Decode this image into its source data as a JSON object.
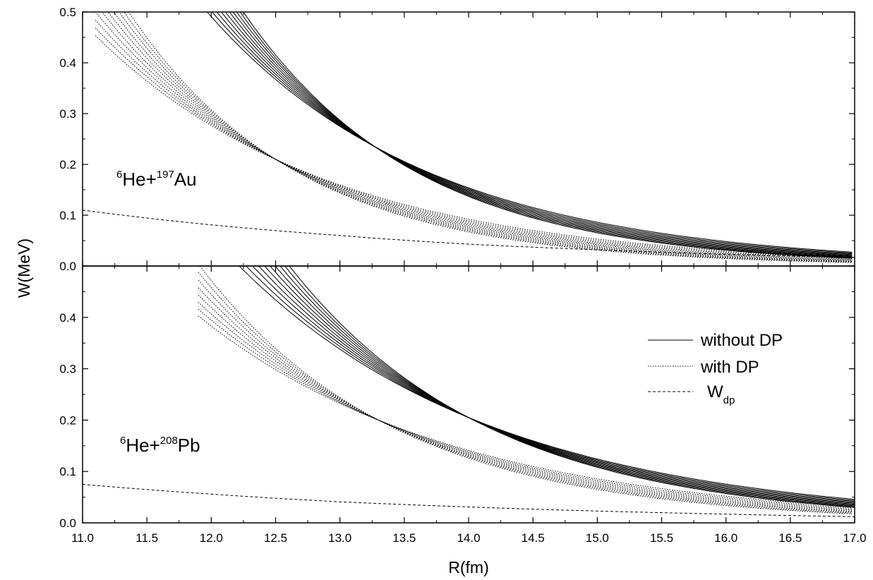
{
  "chart_data": {
    "type": "line",
    "xlabel": "R(fm)",
    "ylabel": "W(MeV)",
    "xlim": [
      11.0,
      17.0
    ],
    "ylim": [
      0.0,
      0.5
    ],
    "x_ticks": [
      "11.0",
      "11.5",
      "12.0",
      "12.5",
      "13.0",
      "13.5",
      "14.0",
      "14.5",
      "15.0",
      "15.5",
      "16.0",
      "16.5",
      "17.0"
    ],
    "y_ticks_top": [
      "0.0",
      "0.1",
      "0.2",
      "0.3",
      "0.4",
      "0.5"
    ],
    "y_ticks_bottom": [
      "0.0",
      "0.1",
      "0.2",
      "0.3",
      "0.4"
    ],
    "grid": false,
    "legend_position": "right",
    "legend": [
      {
        "label": "without DP",
        "style": "solid"
      },
      {
        "label": "with DP",
        "style": "dotted"
      },
      {
        "label": "W",
        "label_sub": "dp",
        "style": "dashed"
      }
    ],
    "panels": [
      {
        "label": {
          "pre_sup": "6",
          "mid": "He+",
          "mid_sup": "197",
          "post": "Au"
        },
        "families": [
          {
            "style": "solid",
            "count": 10,
            "pivot": [
              13.27,
              0.235
            ],
            "decay_range": [
              0.58,
              0.74
            ],
            "x_start": 11.9
          },
          {
            "style": "dotted",
            "count": 10,
            "pivot": [
              12.5,
              0.21
            ],
            "decay_range": [
              0.55,
              0.76
            ],
            "x_start": 11.1
          }
        ],
        "w_dp": {
          "x": [
            11.0,
            12.0,
            13.0,
            14.0,
            15.0,
            16.0,
            17.0
          ],
          "y": [
            0.11,
            0.081,
            0.06,
            0.043,
            0.032,
            0.023,
            0.017
          ]
        }
      },
      {
        "label": {
          "pre_sup": "6",
          "mid": "He+",
          "mid_sup": "208",
          "post": "Pb"
        },
        "families": [
          {
            "style": "solid",
            "count": 10,
            "pivot": [
              14.0,
              0.205
            ],
            "decay_range": [
              0.5,
              0.64
            ],
            "x_start": 12.2
          },
          {
            "style": "dotted",
            "count": 8,
            "pivot": [
              13.3,
              0.2
            ],
            "decay_range": [
              0.5,
              0.66
            ],
            "x_start": 11.9
          }
        ],
        "w_dp": {
          "x": [
            11.0,
            12.0,
            13.0,
            14.0,
            15.0,
            16.0,
            17.0
          ],
          "y": [
            0.075,
            0.056,
            0.041,
            0.031,
            0.023,
            0.017,
            0.012
          ]
        }
      }
    ]
  }
}
